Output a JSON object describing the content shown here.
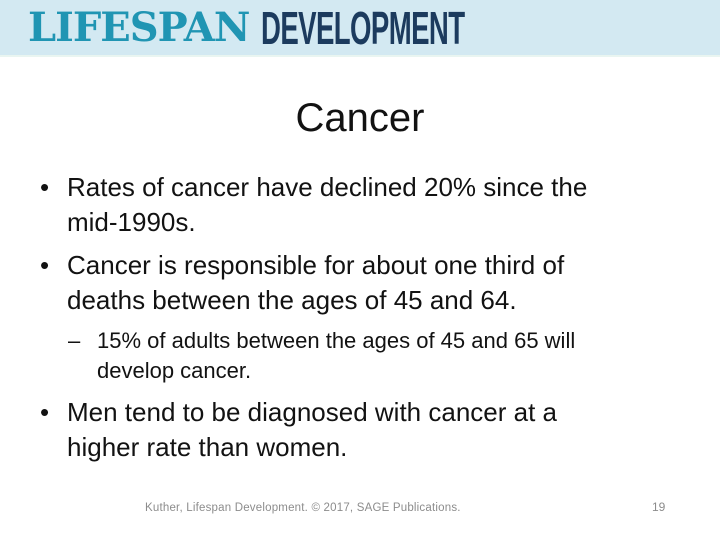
{
  "theme": {
    "banner_bg": "#d3e9f2",
    "brand_teal": "#2095b3",
    "brand_navy": "#1c3b5e",
    "body_text": "#121212",
    "muted_gray": "#8c8c8c"
  },
  "banner": {
    "brand_primary": "LIFESPAN",
    "brand_secondary": "DEVELOPMENT"
  },
  "slide": {
    "title": "Cancer",
    "bullets": [
      {
        "level": 1,
        "marker": "•",
        "lines": [
          "Rates of cancer have declined 20% since the",
          "mid-1990s."
        ]
      },
      {
        "level": 1,
        "marker": "•",
        "lines": [
          "Cancer is responsible for about one third of",
          "deaths between the ages of 45 and 64."
        ]
      },
      {
        "level": 2,
        "marker": "–",
        "lines": [
          "15% of adults between the ages of 45 and 65 will",
          "develop cancer."
        ]
      },
      {
        "level": 1,
        "marker": "•",
        "lines": [
          "Men tend to be diagnosed with cancer at a",
          "higher rate than women."
        ]
      }
    ],
    "footer": "Kuther, Lifespan Development. © 2017, SAGE Publications.",
    "page_number": "19"
  }
}
